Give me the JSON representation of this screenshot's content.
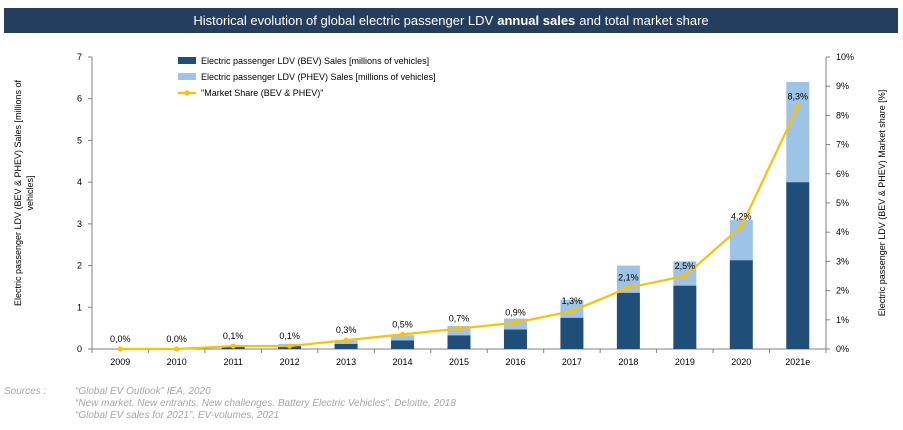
{
  "chart_data": {
    "type": "bar+line",
    "title_parts": {
      "before": "Historical evolution of global electric passenger LDV",
      "bold": "annual sales",
      "after": "and total market share"
    },
    "categories": [
      "2009",
      "2010",
      "2011",
      "2012",
      "2013",
      "2014",
      "2015",
      "2016",
      "2017",
      "2018",
      "2019",
      "2020",
      "2021e"
    ],
    "series": [
      {
        "name": "Electric passenger LDV (BEV) Sales [millions of vehicles]",
        "type": "bar",
        "stack": "sales",
        "color": "#1f4e79",
        "values": [
          0.0,
          0.01,
          0.05,
          0.07,
          0.12,
          0.21,
          0.33,
          0.47,
          0.75,
          1.35,
          1.52,
          2.13,
          4.0
        ]
      },
      {
        "name": "Electric passenger LDV (PHEV) Sales [millions of vehicles]",
        "type": "bar",
        "stack": "sales",
        "color": "#9dc3e6",
        "values": [
          0.0,
          0.0,
          0.03,
          0.05,
          0.08,
          0.12,
          0.22,
          0.26,
          0.43,
          0.65,
          0.58,
          0.97,
          2.4
        ]
      },
      {
        "name": "\"Market Share (BEV & PHEV)\"",
        "type": "line",
        "axis": "right",
        "color": "#ffc000",
        "values": [
          0.0,
          0.0,
          0.1,
          0.1,
          0.3,
          0.5,
          0.7,
          0.9,
          1.3,
          2.1,
          2.5,
          4.2,
          8.3
        ],
        "labels": [
          "0,0%",
          "0,0%",
          "0,1%",
          "0,1%",
          "0,3%",
          "0,5%",
          "0,7%",
          "0,9%",
          "1,3%",
          "2,1%",
          "2,5%",
          "4,2%",
          "8,3%"
        ]
      }
    ],
    "ylabel_left": "Electric passenger LDV (BEV & PHEV) Sales [millions of vehicles]",
    "ylabel_right": "Electric passenger LDV (BEV & PHEV) Market share [%]",
    "ylim_left": [
      0,
      7
    ],
    "yticks_left": [
      "0",
      "1",
      "2",
      "3",
      "4",
      "5",
      "6",
      "7"
    ],
    "ylim_right": [
      0,
      10
    ],
    "yticks_right": [
      "0%",
      "1%",
      "2%",
      "3%",
      "4%",
      "5%",
      "6%",
      "7%",
      "8%",
      "9%",
      "10%"
    ],
    "grid": false,
    "legend_position": "top-left"
  },
  "sources": {
    "label": "Sources :",
    "lines": [
      "“Global EV Outlook” IEA, 2020",
      "“New market. New entrants. New challenges. Battery Electric Vehicles”, Deloitte, 2018",
      "“Global EV sales for 2021”, EV-volumes, 2021"
    ]
  }
}
